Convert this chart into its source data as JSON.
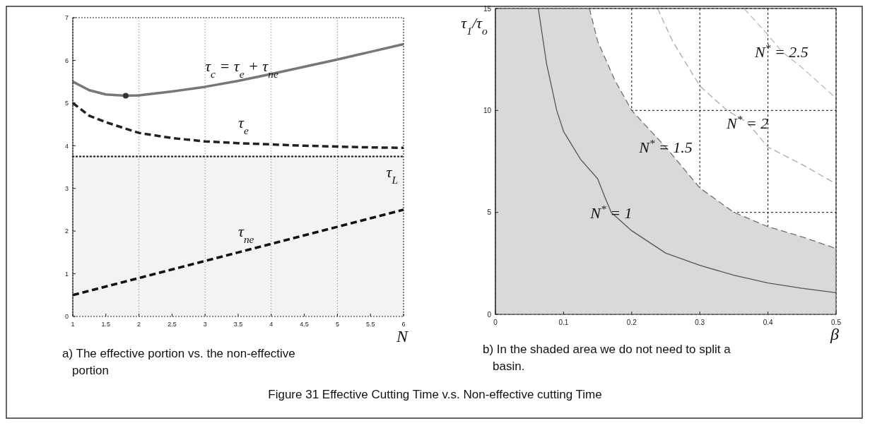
{
  "chart_data": [
    {
      "type": "line",
      "xlabel": "N",
      "xlim": [
        1,
        6
      ],
      "xticks": [
        1,
        1.5,
        2,
        2.5,
        3,
        3.5,
        4,
        4.5,
        5,
        5.5,
        6
      ],
      "ylim": [
        0,
        7
      ],
      "yticks": [
        0,
        1,
        2,
        3,
        4,
        5,
        6,
        7
      ],
      "grid": "x",
      "series": [
        {
          "name": "τ$_{c}$ = τ$_{e}$ + τ$_{ne}$",
          "color": "#777777",
          "line_style": "solid",
          "x": [
            1,
            1.25,
            1.5,
            1.8,
            2,
            2.5,
            3,
            3.5,
            4,
            4.5,
            5,
            5.5,
            6
          ],
          "values": [
            5.5,
            5.3,
            5.2,
            5.17,
            5.18,
            5.27,
            5.38,
            5.52,
            5.68,
            5.85,
            6.02,
            6.2,
            6.38
          ]
        },
        {
          "name": "τ$_{e}$",
          "color": "#222222",
          "line_style": "dashed",
          "x": [
            1,
            1.25,
            1.5,
            2,
            2.5,
            3,
            3.5,
            4,
            4.5,
            5,
            5.5,
            6
          ],
          "values": [
            5.0,
            4.7,
            4.55,
            4.3,
            4.18,
            4.1,
            4.06,
            4.03,
            4.0,
            3.98,
            3.96,
            3.95
          ]
        },
        {
          "name": "τ$_{ne}$",
          "color": "#111111",
          "line_style": "dashed",
          "x": [
            1,
            2,
            3,
            3.5,
            4,
            5,
            6
          ],
          "values": [
            0.5,
            0.9,
            1.3,
            1.5,
            1.7,
            2.1,
            2.5
          ]
        },
        {
          "type": "scatter",
          "color": "#333333",
          "marker": "circle",
          "x": [
            1.8
          ],
          "values": [
            5.17
          ]
        }
      ],
      "ref_lines": [
        {
          "axis": "y",
          "value": 3.75,
          "label": "τ$_{L}$",
          "color": "#333333",
          "line_style": "dotted"
        }
      ],
      "bands": [
        {
          "axis": "y",
          "from": 0,
          "to": 3.75,
          "color": "#f3f3f3"
        }
      ],
      "annotations": [
        "a) The effective portion vs. the non-effective portion"
      ]
    },
    {
      "type": "line",
      "xlabel": "β",
      "ylabel": "τ$_{1}$/τ$_{o}$",
      "xlim": [
        0,
        0.5
      ],
      "xticks": [
        0,
        0.1,
        0.2,
        0.3,
        0.4,
        0.5
      ],
      "ylim": [
        0,
        15
      ],
      "yticks": [
        0,
        5,
        10,
        15
      ],
      "grid": true,
      "series": [
        {
          "name": "N$^{*}$ = 1.5",
          "type": "area",
          "color": "#d9d9d9",
          "line_style": "dashed",
          "x": [
            0,
            0.138,
            0.15,
            0.175,
            0.2,
            0.25,
            0.3,
            0.35,
            0.4,
            0.45,
            0.5
          ],
          "values": [
            15,
            15,
            13.4,
            11.5,
            10,
            8.2,
            6.2,
            5.0,
            4.3,
            3.8,
            3.23
          ]
        },
        {
          "name": "N$^{*}$ = 1",
          "color": "#555555",
          "line_style": "solid",
          "x": [
            0.063,
            0.075,
            0.09,
            0.1,
            0.125,
            0.15,
            0.16,
            0.17,
            0.2,
            0.25,
            0.3,
            0.35,
            0.4,
            0.45,
            0.5
          ],
          "values": [
            15,
            12.3,
            10,
            8.97,
            7.6,
            6.65,
            5.8,
            5,
            4.1,
            3.0,
            2.4,
            1.92,
            1.54,
            1.28,
            1.06
          ]
        },
        {
          "name": "N$^{*}$ = 2",
          "color": "#aaaaaa",
          "line_style": "dashed",
          "x": [
            0.238,
            0.26,
            0.3,
            0.34,
            0.37,
            0.4,
            0.45,
            0.5
          ],
          "values": [
            15,
            13.4,
            11.2,
            10,
            9.4,
            8.2,
            7.35,
            6.4
          ]
        },
        {
          "name": "N$^{*}$ = 2.5",
          "color": "#bbbbbb",
          "line_style": "dashed",
          "x": [
            0.365,
            0.4,
            0.42,
            0.45,
            0.5
          ],
          "values": [
            15,
            13.7,
            12.9,
            12.1,
            10.6
          ]
        }
      ],
      "annotations": [
        "b) In the shaded area we do not need to split a basin.",
        "Figure 31   Effective Cutting Time v.s. Non-effective cutting Time"
      ]
    }
  ]
}
